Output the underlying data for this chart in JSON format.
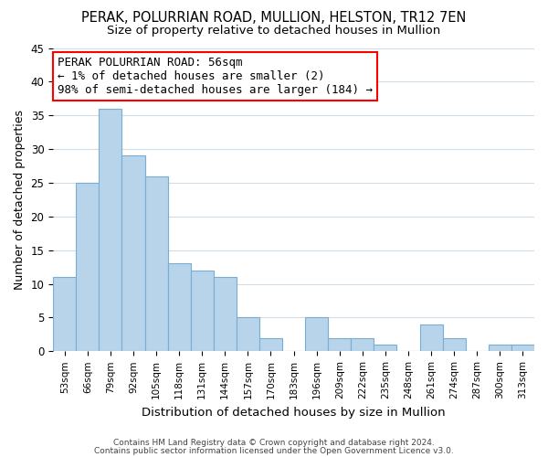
{
  "title1": "PERAK, POLURRIAN ROAD, MULLION, HELSTON, TR12 7EN",
  "title2": "Size of property relative to detached houses in Mullion",
  "xlabel": "Distribution of detached houses by size in Mullion",
  "ylabel": "Number of detached properties",
  "bar_labels": [
    "53sqm",
    "66sqm",
    "79sqm",
    "92sqm",
    "105sqm",
    "118sqm",
    "131sqm",
    "144sqm",
    "157sqm",
    "170sqm",
    "183sqm",
    "196sqm",
    "209sqm",
    "222sqm",
    "235sqm",
    "248sqm",
    "261sqm",
    "274sqm",
    "287sqm",
    "300sqm",
    "313sqm"
  ],
  "bar_values": [
    11,
    25,
    36,
    29,
    26,
    13,
    12,
    11,
    5,
    2,
    0,
    5,
    2,
    2,
    1,
    0,
    4,
    2,
    0,
    1,
    1
  ],
  "bar_color": "#b8d4ea",
  "bar_edge_color": "#7aadd4",
  "annotation_line1": "PERAK POLURRIAN ROAD: 56sqm",
  "annotation_line2": "← 1% of detached houses are smaller (2)",
  "annotation_line3": "98% of semi-detached houses are larger (184) →",
  "annotation_box_color": "white",
  "annotation_box_edge_color": "red",
  "ylim": [
    0,
    45
  ],
  "yticks": [
    0,
    5,
    10,
    15,
    20,
    25,
    30,
    35,
    40,
    45
  ],
  "footer1": "Contains HM Land Registry data © Crown copyright and database right 2024.",
  "footer2": "Contains public sector information licensed under the Open Government Licence v3.0.",
  "background_color": "#ffffff",
  "plot_bg_color": "#ffffff",
  "grid_color": "#d0dce8",
  "title1_fontsize": 10.5,
  "title2_fontsize": 9.5,
  "annotation_fontsize": 9,
  "footer_fontsize": 6.5
}
